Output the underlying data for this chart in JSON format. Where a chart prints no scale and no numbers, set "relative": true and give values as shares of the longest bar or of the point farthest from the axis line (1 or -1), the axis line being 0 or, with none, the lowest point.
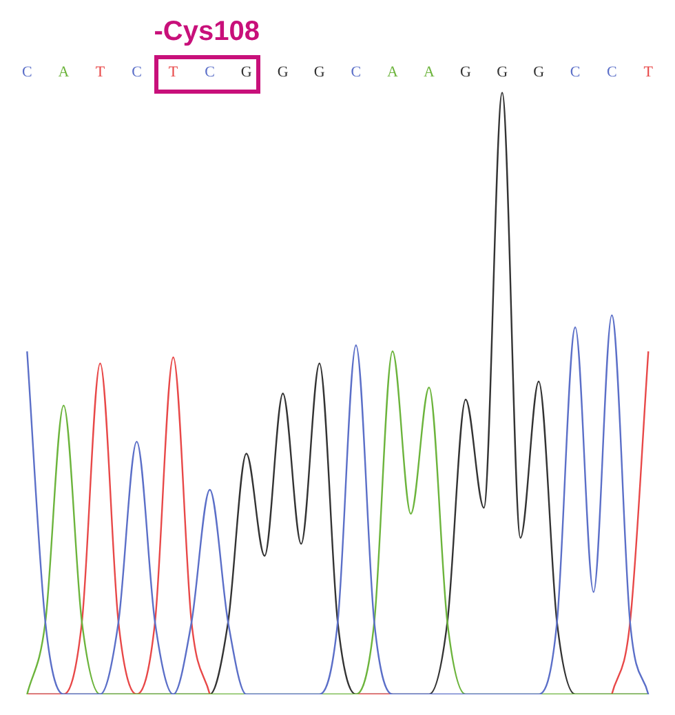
{
  "chart_data": {
    "type": "line",
    "relative": true,
    "annotations": [
      "-Cys108"
    ],
    "legend": false,
    "grid": false,
    "marker": "none",
    "line_style": "solid",
    "categories": [
      "C",
      null,
      "A",
      null,
      "T",
      null,
      "C",
      null,
      "T",
      null,
      "C",
      null,
      "G",
      null,
      "G",
      null,
      "G",
      null,
      "C",
      null,
      "A",
      null,
      "A",
      null,
      "G",
      null,
      "G",
      null,
      "G",
      null,
      "C",
      null,
      "C",
      null,
      "T"
    ],
    "series": [
      {
        "color": "#5b6fc8",
        "values": [
          0.57,
          0.12,
          0,
          0,
          0,
          0.12,
          0.42,
          0.12,
          0,
          0.12,
          0.34,
          0.12,
          0,
          0,
          0,
          0,
          0,
          0.12,
          0.58,
          0.12,
          0,
          0,
          0,
          0,
          0,
          0,
          0,
          0,
          0,
          0.12,
          0.61,
          0.17,
          0.63,
          0.12,
          0
        ]
      },
      {
        "color": "#6cb43c",
        "values": [
          0,
          0.12,
          0.48,
          0.12,
          0,
          0,
          0,
          0,
          0,
          0,
          0,
          0,
          0,
          0,
          0,
          0,
          0,
          0,
          0,
          0.12,
          0.57,
          0.3,
          0.51,
          0.12,
          0,
          0,
          0,
          0,
          0,
          0,
          0,
          0,
          0,
          0,
          0
        ]
      },
      {
        "color": "#e84848",
        "values": [
          0,
          0,
          0,
          0.12,
          0.55,
          0.12,
          0,
          0.12,
          0.56,
          0.12,
          0,
          null,
          null,
          null,
          null,
          null,
          null,
          null,
          0,
          0,
          0,
          null,
          null,
          null,
          null,
          null,
          null,
          null,
          null,
          null,
          null,
          null,
          0,
          0.12,
          0.57
        ]
      },
      {
        "color": "#333333",
        "values": [
          0,
          0,
          0,
          0,
          0,
          0,
          0,
          0,
          0,
          0,
          0,
          0.12,
          0.4,
          0.23,
          0.5,
          0.25,
          0.55,
          0.12,
          0,
          0,
          0,
          0,
          0,
          0.12,
          0.49,
          0.31,
          1,
          0.26,
          0.52,
          0.12,
          0,
          0,
          0,
          0,
          0
        ]
      }
    ]
  }
}
